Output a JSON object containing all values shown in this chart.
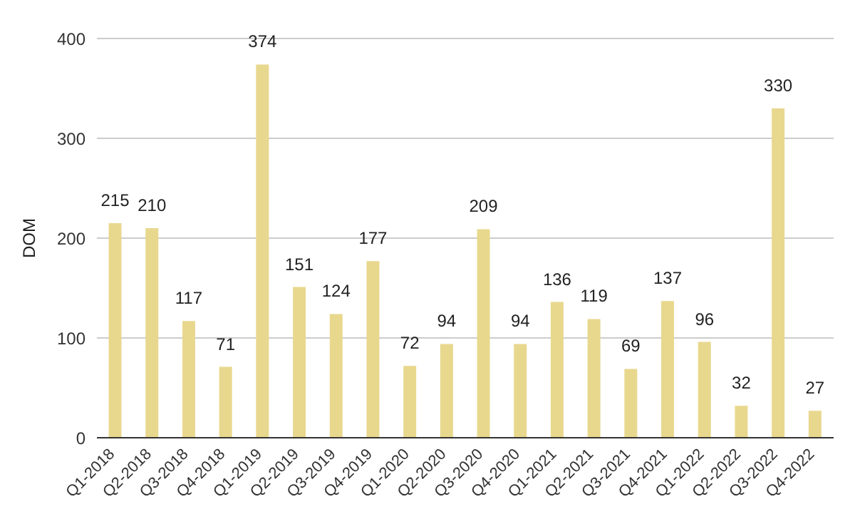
{
  "chart_data": {
    "type": "bar",
    "ylabel": "DOM",
    "categories": [
      "Q1-2018",
      "Q2-2018",
      "Q3-2018",
      "Q4-2018",
      "Q1-2019",
      "Q2-2019",
      "Q3-2019",
      "Q4-2019",
      "Q1-2020",
      "Q2-2020",
      "Q3-2020",
      "Q4-2020",
      "Q1-2021",
      "Q2-2021",
      "Q3-2021",
      "Q4-2021",
      "Q1-2022",
      "Q2-2022",
      "Q3-2022",
      "Q4-2022"
    ],
    "values": [
      215,
      210,
      117,
      71,
      374,
      151,
      124,
      177,
      72,
      94,
      209,
      94,
      136,
      119,
      69,
      137,
      96,
      32,
      330,
      27
    ],
    "color": "#e8d88e",
    "ylim": [
      0,
      400
    ],
    "yticks": [
      0,
      100,
      200,
      300,
      400
    ],
    "grid": "y",
    "data_labels": true
  }
}
